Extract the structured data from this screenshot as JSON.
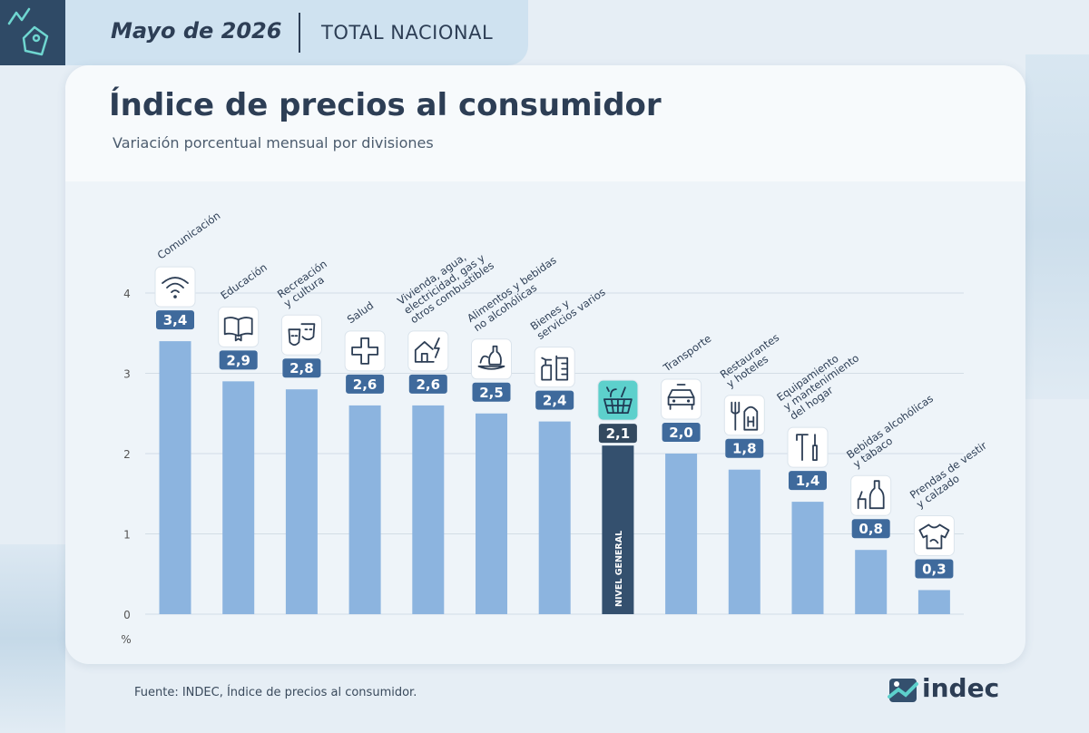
{
  "header": {
    "date": "Mayo de 2026",
    "region": "TOTAL NACIONAL",
    "icon": "price-tag-icon"
  },
  "title": "Índice de precios al consumidor",
  "subtitle": "Variación porcentual mensual por divisiones",
  "source": "Fuente: INDEC, Índice de precios al consumidor.",
  "logo": {
    "text": "indec",
    "icon": "indec-logo-icon"
  },
  "colors": {
    "bar": "#8cb4df",
    "highlight_bar": "#34506e",
    "label_box": "#3f6a9c",
    "highlight_label_box": "#33495f",
    "highlight_icon_bg": "#5dd0cc",
    "header_dark": "#2f4a66"
  },
  "chart_data": {
    "type": "bar",
    "unit": "%",
    "yticks": [
      0,
      1,
      2,
      3,
      4
    ],
    "ylim": [
      0,
      4.2
    ],
    "grid": true,
    "categories": [
      {
        "lines": [
          "Comunicación"
        ],
        "value": 3.4,
        "label": "3,4",
        "icon": "wifi-icon"
      },
      {
        "lines": [
          "Educación"
        ],
        "value": 2.9,
        "label": "2,9",
        "icon": "book-icon"
      },
      {
        "lines": [
          "Recreación",
          "y cultura"
        ],
        "value": 2.8,
        "label": "2,8",
        "icon": "theater-masks-icon"
      },
      {
        "lines": [
          "Salud"
        ],
        "value": 2.6,
        "label": "2,6",
        "icon": "health-cross-icon"
      },
      {
        "lines": [
          "Vivienda, agua,",
          "electricidad, gas y",
          "otros combustibles"
        ],
        "value": 2.6,
        "label": "2,6",
        "icon": "house-energy-icon"
      },
      {
        "lines": [
          "Alimentos y bebidas",
          "no alcohólicas"
        ],
        "value": 2.5,
        "label": "2,5",
        "icon": "food-icon"
      },
      {
        "lines": [
          "Bienes y",
          "servicios varios"
        ],
        "value": 2.4,
        "label": "2,4",
        "icon": "personal-care-icon"
      },
      {
        "lines": [
          "NIVEL GENERAL"
        ],
        "value": 2.1,
        "label": "2,1",
        "icon": "shopping-basket-icon",
        "highlight": true
      },
      {
        "lines": [
          "Transporte"
        ],
        "value": 2.0,
        "label": "2,0",
        "icon": "car-icon"
      },
      {
        "lines": [
          "Restaurantes",
          "y hoteles"
        ],
        "value": 1.8,
        "label": "1,8",
        "icon": "restaurant-hotel-icon"
      },
      {
        "lines": [
          "Equipamiento",
          "y mantenimiento",
          "del hogar"
        ],
        "value": 1.4,
        "label": "1,4",
        "icon": "tools-icon"
      },
      {
        "lines": [
          "Bebidas alcohólicas",
          "y tabaco"
        ],
        "value": 0.8,
        "label": "0,8",
        "icon": "bottle-icon"
      },
      {
        "lines": [
          "Prendas de vestir",
          "y calzado"
        ],
        "value": 0.3,
        "label": "0,3",
        "icon": "tshirt-icon"
      }
    ]
  }
}
